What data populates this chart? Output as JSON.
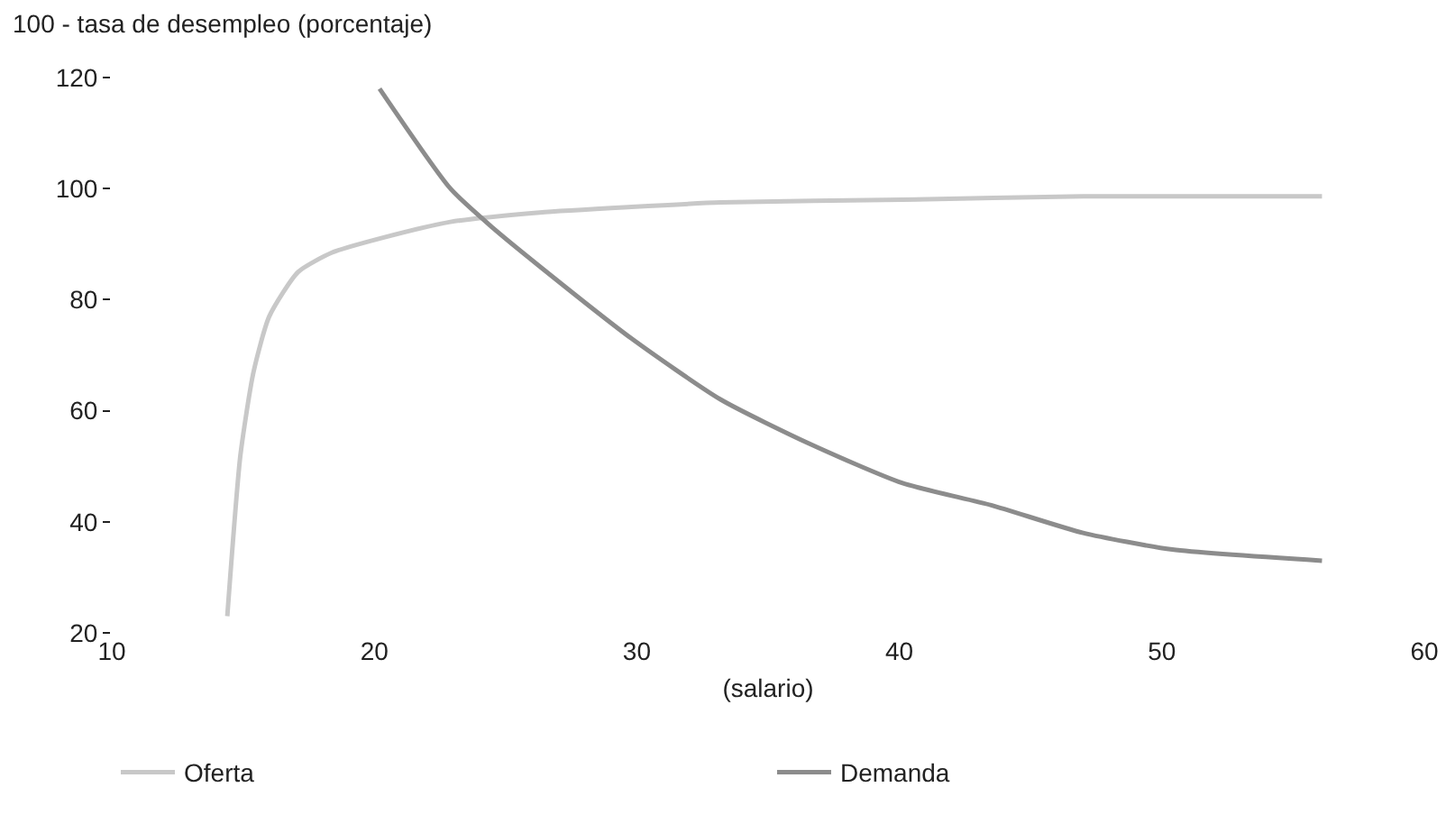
{
  "chart_data": {
    "type": "line",
    "xlabel": "(salario)",
    "ylabel": "100 - tasa de desempleo (porcentaje)",
    "xlim": [
      10,
      60
    ],
    "xticks": [
      10,
      20,
      30,
      40,
      50,
      60
    ],
    "ylim": [
      20,
      120
    ],
    "yticks": [
      20,
      40,
      60,
      80,
      100,
      120
    ],
    "grid": false,
    "legend": "bottom",
    "marker": "none",
    "line_style": "solid",
    "series": [
      {
        "name": "Oferta",
        "color": "#c8c8c8",
        "x": [
          14.4,
          14.9,
          15.4,
          16.0,
          17.1,
          18.4,
          20.2,
          22.9,
          26.3,
          29.8,
          33.2,
          40.1,
          47.0,
          56.1
        ],
        "values": [
          23,
          52,
          67,
          77,
          85,
          88.5,
          91,
          94,
          95.7,
          96.7,
          97.5,
          98,
          98.6,
          98.6
        ]
      },
      {
        "name": "Demanda",
        "color": "#8c8c8c",
        "x": [
          20.2,
          22.9,
          24.5,
          26.3,
          29.8,
          33.2,
          36.6,
          40.1,
          43.5,
          47.0,
          50.4,
          56.1
        ],
        "values": [
          118,
          100,
          93,
          86,
          73,
          62,
          54,
          47,
          43,
          38,
          35,
          33
        ]
      }
    ]
  }
}
